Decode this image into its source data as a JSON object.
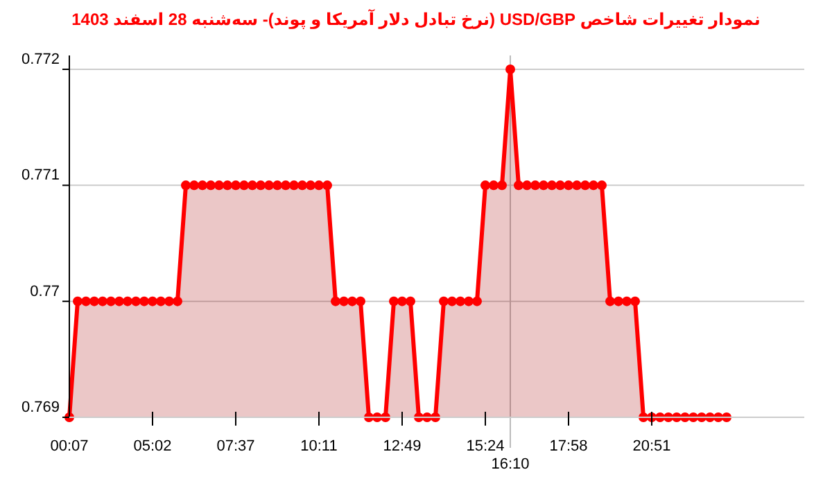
{
  "chart_data": {
    "type": "area",
    "title": "نمودار تغییرات شاخص USD/GBP (نرخ تبادل دلار آمریکا و پوند)- سه‌شنبه  28 اسفند 1403",
    "categories": [
      "00:07",
      null,
      null,
      null,
      null,
      null,
      null,
      null,
      null,
      null,
      "05:02",
      null,
      null,
      null,
      null,
      null,
      null,
      null,
      null,
      null,
      "07:37",
      null,
      null,
      null,
      null,
      null,
      null,
      null,
      null,
      null,
      "10:11",
      null,
      null,
      null,
      null,
      null,
      null,
      null,
      null,
      null,
      "12:49",
      null,
      null,
      null,
      null,
      null,
      null,
      null,
      null,
      null,
      "15:24",
      null,
      null,
      null,
      null,
      null,
      null,
      null,
      null,
      null,
      "17:58",
      null,
      null,
      null,
      null,
      null,
      null,
      null,
      null,
      null,
      "20:51",
      null,
      null,
      null,
      null,
      null,
      null,
      null,
      null,
      null
    ],
    "series": [
      {
        "color": "#ff0000",
        "values": [
          0.769,
          0.77,
          0.77,
          0.77,
          0.77,
          0.77,
          0.77,
          0.77,
          0.77,
          0.77,
          0.77,
          0.77,
          0.77,
          0.77,
          0.771,
          0.771,
          0.771,
          0.771,
          0.771,
          0.771,
          0.771,
          0.771,
          0.771,
          0.771,
          0.771,
          0.771,
          0.771,
          0.771,
          0.771,
          0.771,
          0.771,
          0.771,
          0.77,
          0.77,
          0.77,
          0.77,
          0.769,
          0.769,
          0.769,
          0.77,
          0.77,
          0.77,
          0.769,
          0.769,
          0.769,
          0.77,
          0.77,
          0.77,
          0.77,
          0.77,
          0.771,
          0.771,
          0.771,
          0.772,
          0.771,
          0.771,
          0.771,
          0.771,
          0.771,
          0.771,
          0.771,
          0.771,
          0.771,
          0.771,
          0.771,
          0.77,
          0.77,
          0.77,
          0.77,
          0.769,
          0.769,
          0.769,
          0.769,
          0.769,
          0.769,
          0.769,
          0.769,
          0.769,
          0.769,
          0.769
        ]
      }
    ],
    "ylim": [
      0.769,
      0.772
    ],
    "yticks": [
      0.769,
      {
        "value": 0.77,
        "label": "0.77"
      },
      0.771,
      0.772
    ],
    "grid": "y",
    "marker": "circle",
    "line_style": "solid",
    "ref_lines": [
      {
        "axis": "x",
        "value": "16:10"
      }
    ]
  }
}
